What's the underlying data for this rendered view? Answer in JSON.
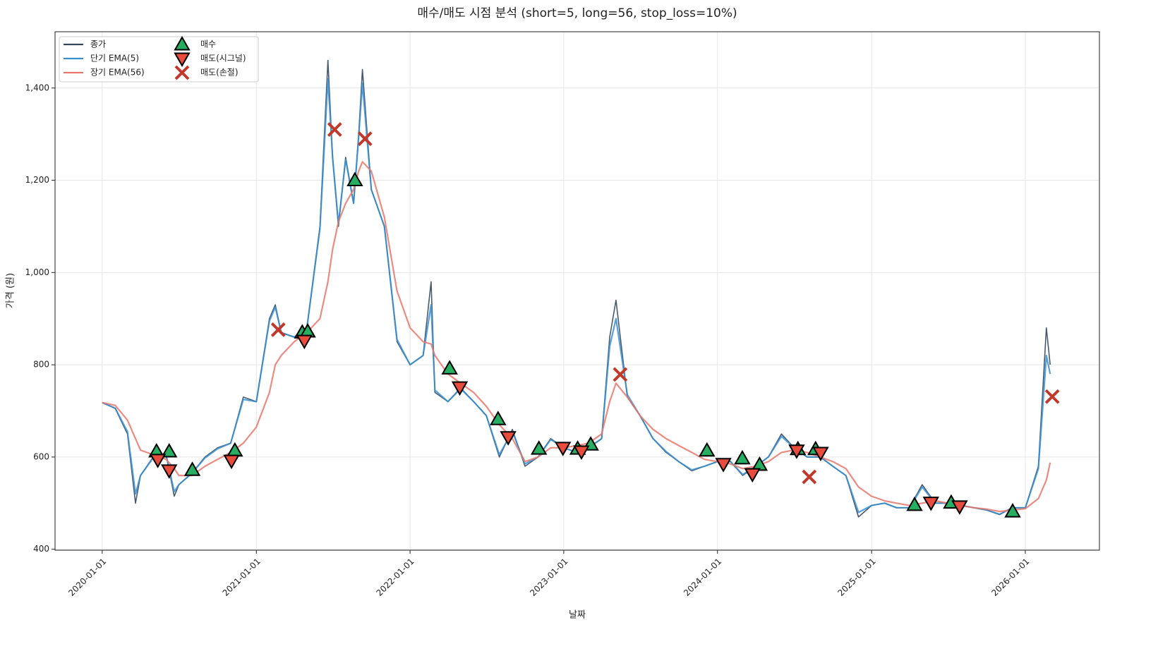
{
  "chart_data": {
    "type": "line",
    "title": "매수/매도 시점 분석 (short=5, long=56, stop_loss=10%)",
    "xlabel": "날짜",
    "ylabel": "가격 (원)",
    "grid": true,
    "legend": "upper left",
    "xlim": [
      "2019-09-11",
      "2026-06-26"
    ],
    "xticks": [
      "2020-01-01",
      "2021-01-01",
      "2022-01-01",
      "2023-01-01",
      "2024-01-01",
      "2025-01-01",
      "2026-01-01"
    ],
    "ylim": [
      398,
      1522
    ],
    "yticks": [
      400,
      600,
      800,
      {
        "value": 1000,
        "label": "1,000"
      },
      {
        "value": 1200,
        "label": "1,200"
      },
      {
        "value": 1400,
        "label": "1,400"
      }
    ],
    "x": [
      "2020-01-01",
      "2020-02-01",
      "2020-03-01",
      "2020-03-20",
      "2020-04-01",
      "2020-05-01",
      "2020-06-01",
      "2020-06-20",
      "2020-07-01",
      "2020-08-01",
      "2020-09-01",
      "2020-10-01",
      "2020-11-01",
      "2020-12-01",
      "2021-01-01",
      "2021-02-01",
      "2021-02-15",
      "2021-03-01",
      "2021-04-01",
      "2021-05-01",
      "2021-06-01",
      "2021-06-20",
      "2021-07-01",
      "2021-07-15",
      "2021-08-01",
      "2021-08-20",
      "2021-09-01",
      "2021-09-10",
      "2021-10-01",
      "2021-11-01",
      "2021-12-01",
      "2022-01-01",
      "2022-02-01",
      "2022-02-20",
      "2022-03-01",
      "2022-04-01",
      "2022-05-01",
      "2022-06-01",
      "2022-07-01",
      "2022-08-01",
      "2022-09-01",
      "2022-10-01",
      "2022-11-01",
      "2022-12-01",
      "2023-01-01",
      "2023-02-01",
      "2023-03-01",
      "2023-04-01",
      "2023-04-20",
      "2023-05-05",
      "2023-06-01",
      "2023-07-01",
      "2023-08-01",
      "2023-09-01",
      "2023-10-01",
      "2023-11-01",
      "2023-12-01",
      "2024-01-01",
      "2024-02-01",
      "2024-03-01",
      "2024-04-01",
      "2024-05-01",
      "2024-06-01",
      "2024-07-01",
      "2024-08-01",
      "2024-09-01",
      "2024-10-01",
      "2024-11-01",
      "2024-12-01",
      "2025-01-01",
      "2025-02-01",
      "2025-03-01",
      "2025-04-01",
      "2025-05-01",
      "2025-06-01",
      "2025-07-01",
      "2025-08-01",
      "2025-09-01",
      "2025-10-01",
      "2025-11-01",
      "2025-12-01",
      "2026-01-01",
      "2026-02-01",
      "2026-02-20",
      "2026-03-01"
    ],
    "series": [
      {
        "name": "종가",
        "color": "#34495e",
        "values": [
          718,
          705,
          650,
          500,
          560,
          600,
          605,
          515,
          540,
          565,
          600,
          620,
          630,
          730,
          720,
          900,
          930,
          870,
          860,
          880,
          1100,
          1460,
          1250,
          1100,
          1250,
          1150,
          1300,
          1440,
          1180,
          1100,
          850,
          800,
          820,
          980,
          740,
          720,
          750,
          720,
          690,
          600,
          660,
          580,
          600,
          640,
          620,
          610,
          620,
          640,
          860,
          940,
          730,
          690,
          640,
          610,
          590,
          570,
          580,
          590,
          590,
          560,
          580,
          600,
          650,
          620,
          600,
          600,
          580,
          560,
          470,
          495,
          500,
          490,
          490,
          540,
          500,
          500,
          495,
          490,
          485,
          475,
          490,
          490,
          580,
          880,
          800
        ]
      },
      {
        "name": "단기 EMA(5)",
        "color": "#3a8fd0",
        "values": [
          718,
          706,
          655,
          520,
          560,
          598,
          603,
          525,
          540,
          565,
          598,
          618,
          630,
          725,
          720,
          895,
          925,
          870,
          860,
          880,
          1095,
          1420,
          1250,
          1105,
          1245,
          1150,
          1295,
          1410,
          1180,
          1100,
          855,
          800,
          820,
          930,
          745,
          720,
          748,
          720,
          690,
          605,
          655,
          585,
          600,
          638,
          620,
          610,
          620,
          640,
          840,
          900,
          735,
          690,
          640,
          612,
          590,
          572,
          580,
          590,
          590,
          562,
          580,
          600,
          645,
          620,
          600,
          600,
          580,
          560,
          480,
          495,
          500,
          490,
          490,
          535,
          500,
          500,
          495,
          490,
          485,
          476,
          490,
          490,
          575,
          820,
          780
        ]
      },
      {
        "name": "장기 EMA(56)",
        "color": "#e8776c",
        "values": [
          718,
          712,
          680,
          640,
          615,
          605,
          595,
          575,
          560,
          560,
          580,
          595,
          610,
          630,
          665,
          740,
          800,
          820,
          850,
          870,
          900,
          980,
          1050,
          1110,
          1150,
          1180,
          1220,
          1240,
          1220,
          1120,
          960,
          880,
          850,
          845,
          820,
          780,
          760,
          740,
          710,
          670,
          640,
          590,
          600,
          620,
          620,
          625,
          630,
          650,
          720,
          760,
          730,
          690,
          660,
          640,
          625,
          610,
          595,
          590,
          585,
          575,
          580,
          590,
          610,
          615,
          610,
          600,
          590,
          575,
          535,
          515,
          505,
          500,
          495,
          500,
          505,
          500,
          495,
          490,
          487,
          482,
          485,
          488,
          510,
          550,
          588
        ]
      }
    ],
    "markers": [
      {
        "name": "매수",
        "marker": "^",
        "color": "#27ae60",
        "x": [
          "2020-05-09",
          "2020-06-08",
          "2020-08-02",
          "2020-11-11",
          "2021-04-20",
          "2021-05-03",
          "2021-08-23",
          "2022-04-05",
          "2022-07-29",
          "2022-11-03",
          "2023-02-03",
          "2023-03-06",
          "2023-12-07",
          "2024-02-29",
          "2024-04-10",
          "2024-07-10",
          "2024-08-21",
          "2025-04-13",
          "2025-07-09",
          "2025-12-02"
        ],
        "values": [
          612,
          612,
          572,
          614,
          870,
          872,
          1200,
          792,
          682,
          618,
          618,
          627,
          614,
          597,
          583,
          617,
          617,
          496,
          501,
          482
        ]
      },
      {
        "name": "매도(시그널)",
        "marker": "v",
        "color": "#e74c3c",
        "x": [
          "2020-05-12",
          "2020-06-08",
          "2020-11-03",
          "2021-04-25",
          "2022-04-29",
          "2022-08-22",
          "2022-12-30",
          "2023-02-12",
          "2024-01-15",
          "2024-03-24",
          "2024-07-07",
          "2024-09-02",
          "2025-05-22",
          "2025-07-29"
        ],
        "values": [
          594,
          571,
          592,
          852,
          751,
          643,
          620,
          612,
          585,
          563,
          614,
          609,
          501,
          493
        ]
      },
      {
        "name": "매도(손절)",
        "marker": "x",
        "color": "#c0392b",
        "x": [
          "2021-02-22",
          "2021-07-06",
          "2021-09-16",
          "2023-05-15",
          "2024-08-06",
          "2026-03-06"
        ],
        "values": [
          876,
          1310,
          1290,
          779,
          557,
          731
        ]
      }
    ]
  }
}
